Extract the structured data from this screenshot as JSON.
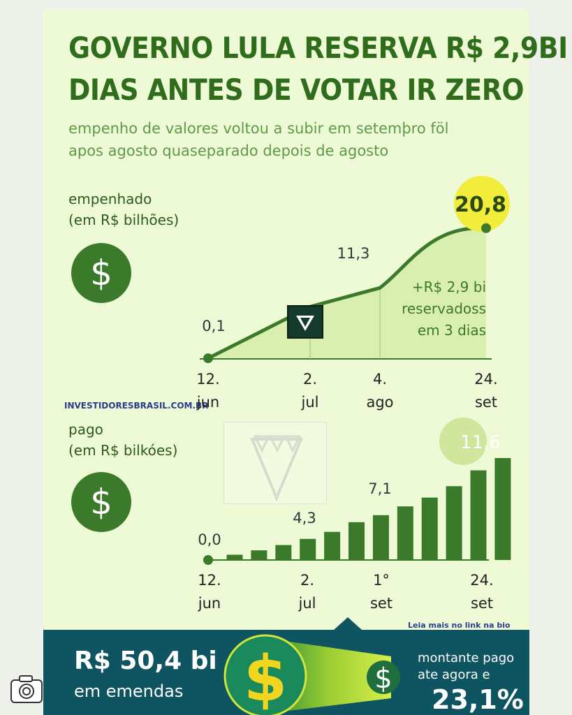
{
  "header": {
    "title_line1": "GOVERNO LULA RESERVA R$ 2,9BI",
    "title_line2": "DIAS ANTES DE VOTAR IR ZERO",
    "subtitle_line1": "empenho de valores voltou a subir em setemþro föl",
    "subtitle_line2": "apos agosto quaseparado depois de agosto"
  },
  "source": "INVESTIDORESBRASIL.COM.BR",
  "read_more": "Leia mais no link na bio",
  "colors": {
    "dark_green": "#3b7a2a",
    "title_green": "#2f6d1c",
    "area_fill": "#d8efb0",
    "highlight_yellow": "#f2ec3a",
    "footer_teal": "#0f5461"
  },
  "chart_data": [
    {
      "type": "area",
      "label_line1": "empenhado",
      "label_line2": "(em R$ bilhões)",
      "icon": "dollar-icon",
      "x": [
        "12. jun",
        "2. jul",
        "4. ago",
        "24. set"
      ],
      "x_labels": [
        [
          "12.",
          "jun"
        ],
        [
          "2.",
          "jul"
        ],
        [
          "4.",
          "ago"
        ],
        [
          "24.",
          "set"
        ]
      ],
      "values": [
        0.1,
        8.3,
        11.3,
        20.8
      ],
      "value_labels": [
        "0,1",
        "",
        "11,3",
        "20,8"
      ],
      "ylim": [
        0,
        21
      ],
      "annotation": [
        "+R$ 2,9 bi",
        "reservadoss",
        "em 3 dias"
      ]
    },
    {
      "type": "bar",
      "label_line1": "pago",
      "label_line2": "(em R$ bilkóes)",
      "icon": "dollar-icon",
      "values": [
        0.0,
        0.6,
        1.1,
        1.7,
        2.4,
        3.2,
        4.3,
        5.1,
        6.1,
        7.1,
        8.4,
        10.2,
        11.6
      ],
      "value_labels": {
        "0": "0,0",
        "6": "4,3",
        "9": "7,1",
        "12": "11,6"
      },
      "x_labels": [
        [
          "12.",
          "jun"
        ],
        [
          "2.",
          "jul"
        ],
        [
          "1°",
          "set"
        ],
        [
          "24.",
          "set"
        ]
      ],
      "ylim": [
        0,
        11.6
      ]
    }
  ],
  "footer": {
    "amount": "R$ 50,4 bi",
    "amount_label": "em emendas",
    "paid_line1": "montante pago",
    "paid_line2": "ate agora e",
    "paid_percent": "23,1%"
  }
}
